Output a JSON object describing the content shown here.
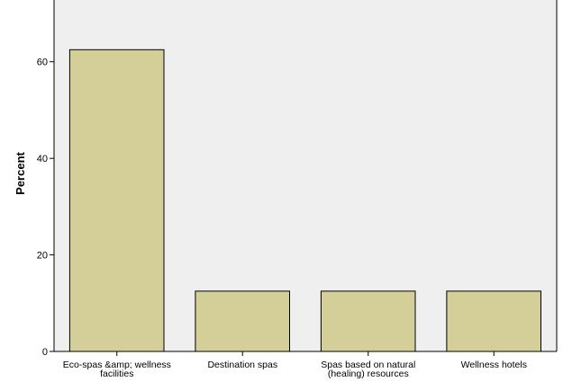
{
  "chart_data": {
    "type": "bar",
    "categories": [
      [
        "Eco-spas &amp; wellness",
        "facilities"
      ],
      [
        "Destination spas"
      ],
      [
        "Spas based on natural",
        "(healing) resources"
      ],
      [
        "Wellness hotels"
      ]
    ],
    "values": [
      62.5,
      12.5,
      12.5,
      12.5
    ],
    "ylabel": "Percent",
    "yticks": [
      "0",
      "20",
      "40",
      "60"
    ],
    "ylim": [
      0,
      72.8
    ],
    "grid": false,
    "legend": "none",
    "colors": {
      "bar_fill": "#d4cf98",
      "bar_stroke": "#000000",
      "plot_background": "#efefef",
      "axis": "#000000"
    }
  }
}
